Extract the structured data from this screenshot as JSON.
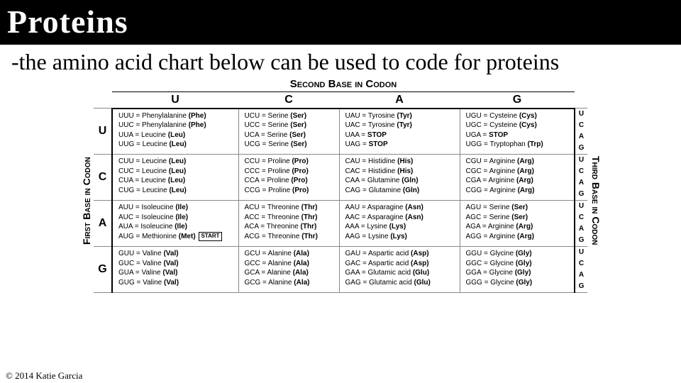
{
  "header": "Proteins",
  "subtitle": "-the amino acid chart below can be used to code for proteins",
  "copyright": "© 2014 Katie Garcia",
  "labels": {
    "second": "Second Base in Codon",
    "first": "First Base in Codon",
    "third": "Third Base in Codon"
  },
  "columns": [
    "U",
    "C",
    "A",
    "G"
  ],
  "rows": [
    "U",
    "C",
    "A",
    "G"
  ],
  "third_bases": [
    "U",
    "C",
    "A",
    "G"
  ],
  "grid": {
    "U": {
      "U": [
        {
          "codon": "UUU",
          "name": "Phenylalanine",
          "abbr": "Phe"
        },
        {
          "codon": "UUC",
          "name": "Phenylalanine",
          "abbr": "Phe"
        },
        {
          "codon": "UUA",
          "name": "Leucine",
          "abbr": "Leu"
        },
        {
          "codon": "UUG",
          "name": "Leucine",
          "abbr": "Leu"
        }
      ],
      "C": [
        {
          "codon": "UCU",
          "name": "Serine",
          "abbr": "Ser"
        },
        {
          "codon": "UCC",
          "name": "Serine",
          "abbr": "Ser"
        },
        {
          "codon": "UCA",
          "name": "Serine",
          "abbr": "Ser"
        },
        {
          "codon": "UCG",
          "name": "Serine",
          "abbr": "Ser"
        }
      ],
      "A": [
        {
          "codon": "UAU",
          "name": "Tyrosine",
          "abbr": "Tyr"
        },
        {
          "codon": "UAC",
          "name": "Tyrosine",
          "abbr": "Tyr"
        },
        {
          "codon": "UAA",
          "stop": true
        },
        {
          "codon": "UAG",
          "stop": true
        }
      ],
      "G": [
        {
          "codon": "UGU",
          "name": "Cysteine",
          "abbr": "Cys"
        },
        {
          "codon": "UGC",
          "name": "Cysteine",
          "abbr": "Cys"
        },
        {
          "codon": "UGA",
          "stop": true
        },
        {
          "codon": "UGG",
          "name": "Tryptophan",
          "abbr": "Trp"
        }
      ]
    },
    "C": {
      "U": [
        {
          "codon": "CUU",
          "name": "Leucine",
          "abbr": "Leu"
        },
        {
          "codon": "CUC",
          "name": "Leucine",
          "abbr": "Leu"
        },
        {
          "codon": "CUA",
          "name": "Leucine",
          "abbr": "Leu"
        },
        {
          "codon": "CUG",
          "name": "Leucine",
          "abbr": "Leu"
        }
      ],
      "C": [
        {
          "codon": "CCU",
          "name": "Proline",
          "abbr": "Pro"
        },
        {
          "codon": "CCC",
          "name": "Proline",
          "abbr": "Pro"
        },
        {
          "codon": "CCA",
          "name": "Proline",
          "abbr": "Pro"
        },
        {
          "codon": "CCG",
          "name": "Proline",
          "abbr": "Pro"
        }
      ],
      "A": [
        {
          "codon": "CAU",
          "name": "Histidine",
          "abbr": "His"
        },
        {
          "codon": "CAC",
          "name": "Histidine",
          "abbr": "His"
        },
        {
          "codon": "CAA",
          "name": "Glutamine",
          "abbr": "Gln"
        },
        {
          "codon": "CAG",
          "name": "Glutamine",
          "abbr": "Gln"
        }
      ],
      "G": [
        {
          "codon": "CGU",
          "name": "Arginine",
          "abbr": "Arg"
        },
        {
          "codon": "CGC",
          "name": "Arginine",
          "abbr": "Arg"
        },
        {
          "codon": "CGA",
          "name": "Arginine",
          "abbr": "Arg"
        },
        {
          "codon": "CGG",
          "name": "Arginine",
          "abbr": "Arg"
        }
      ]
    },
    "A": {
      "U": [
        {
          "codon": "AUU",
          "name": "Isoleucine",
          "abbr": "Ile"
        },
        {
          "codon": "AUC",
          "name": "Isoleucine",
          "abbr": "Ile"
        },
        {
          "codon": "AUA",
          "name": "Isoleucine",
          "abbr": "Ile"
        },
        {
          "codon": "AUG",
          "name": "Methionine",
          "abbr": "Met",
          "start": true
        }
      ],
      "C": [
        {
          "codon": "ACU",
          "name": "Threonine",
          "abbr": "Thr"
        },
        {
          "codon": "ACC",
          "name": "Threonine",
          "abbr": "Thr"
        },
        {
          "codon": "ACA",
          "name": "Threonine",
          "abbr": "Thr"
        },
        {
          "codon": "ACG",
          "name": "Threonine",
          "abbr": "Thr"
        }
      ],
      "A": [
        {
          "codon": "AAU",
          "name": "Asparagine",
          "abbr": "Asn"
        },
        {
          "codon": "AAC",
          "name": "Asparagine",
          "abbr": "Asn"
        },
        {
          "codon": "AAA",
          "name": "Lysine",
          "abbr": "Lys"
        },
        {
          "codon": "AAG",
          "name": "Lysine",
          "abbr": "Lys"
        }
      ],
      "G": [
        {
          "codon": "AGU",
          "name": "Serine",
          "abbr": "Ser"
        },
        {
          "codon": "AGC",
          "name": "Serine",
          "abbr": "Ser"
        },
        {
          "codon": "AGA",
          "name": "Arginine",
          "abbr": "Arg"
        },
        {
          "codon": "AGG",
          "name": "Arginine",
          "abbr": "Arg"
        }
      ]
    },
    "G": {
      "U": [
        {
          "codon": "GUU",
          "name": "Valine",
          "abbr": "Val"
        },
        {
          "codon": "GUC",
          "name": "Valine",
          "abbr": "Val"
        },
        {
          "codon": "GUA",
          "name": "Valine",
          "abbr": "Val"
        },
        {
          "codon": "GUG",
          "name": "Valine",
          "abbr": "Val"
        }
      ],
      "C": [
        {
          "codon": "GCU",
          "name": "Alanine",
          "abbr": "Ala"
        },
        {
          "codon": "GCC",
          "name": "Alanine",
          "abbr": "Ala"
        },
        {
          "codon": "GCA",
          "name": "Alanine",
          "abbr": "Ala"
        },
        {
          "codon": "GCG",
          "name": "Alanine",
          "abbr": "Ala"
        }
      ],
      "A": [
        {
          "codon": "GAU",
          "name": "Aspartic acid",
          "abbr": "Asp"
        },
        {
          "codon": "GAC",
          "name": "Aspartic acid",
          "abbr": "Asp"
        },
        {
          "codon": "GAA",
          "name": "Glutamic acid",
          "abbr": "Glu"
        },
        {
          "codon": "GAG",
          "name": "Glutamic acid",
          "abbr": "Glu"
        }
      ],
      "G": [
        {
          "codon": "GGU",
          "name": "Glycine",
          "abbr": "Gly"
        },
        {
          "codon": "GGC",
          "name": "Glycine",
          "abbr": "Gly"
        },
        {
          "codon": "GGA",
          "name": "Glycine",
          "abbr": "Gly"
        },
        {
          "codon": "GGG",
          "name": "Glycine",
          "abbr": "Gly"
        }
      ]
    }
  },
  "start_label": "START",
  "stop_label": "STOP"
}
